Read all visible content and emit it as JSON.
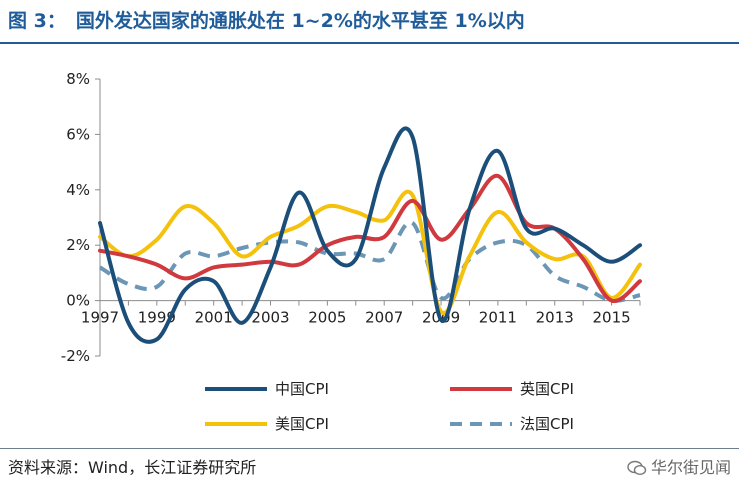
{
  "header": {
    "figure_label": "图 3：",
    "title": "国外发达国家的通胀处在 1~2%的水平甚至 1%以内"
  },
  "footer": {
    "source": "资料来源：Wind，长江证券研究所",
    "watermark": "华尔街见闻"
  },
  "colors": {
    "title": "#1f5c99",
    "china": "#1b4f7a",
    "uk": "#d0393e",
    "us": "#f4c20d",
    "france": "#6b96b6"
  },
  "chart_data": {
    "type": "line",
    "title": "",
    "xlabel": "",
    "ylabel": "",
    "ylim": [
      -2,
      8
    ],
    "xlim": [
      1997,
      2016
    ],
    "y_ticks": [
      "-2%",
      "0%",
      "2%",
      "4%",
      "6%",
      "8%"
    ],
    "y_tick_values": [
      -2,
      0,
      2,
      4,
      6,
      8
    ],
    "x_ticks": [
      "1997",
      "1999",
      "2001",
      "2003",
      "2005",
      "2007",
      "2009",
      "2011",
      "2013",
      "2015"
    ],
    "x_tick_values": [
      1997,
      1999,
      2001,
      2003,
      2005,
      2007,
      2009,
      2011,
      2013,
      2015
    ],
    "grid": false,
    "legend_position": "bottom",
    "x": [
      1997,
      1998,
      1999,
      2000,
      2001,
      2002,
      2003,
      2004,
      2005,
      2006,
      2007,
      2008,
      2009,
      2010,
      2011,
      2012,
      2013,
      2014,
      2015,
      2016
    ],
    "series": [
      {
        "name": "中国CPI",
        "color": "#1b4f7a",
        "dash": "solid",
        "values": [
          2.8,
          -0.8,
          -1.4,
          0.4,
          0.7,
          -0.8,
          1.2,
          3.9,
          1.8,
          1.5,
          4.8,
          5.9,
          -0.7,
          3.3,
          5.4,
          2.6,
          2.6,
          2.0,
          1.4,
          2.0
        ]
      },
      {
        "name": "英国CPI",
        "color": "#d0393e",
        "dash": "solid",
        "values": [
          1.8,
          1.6,
          1.3,
          0.8,
          1.2,
          1.3,
          1.4,
          1.3,
          2.0,
          2.3,
          2.3,
          3.6,
          2.2,
          3.3,
          4.5,
          2.8,
          2.6,
          1.5,
          0.0,
          0.7
        ]
      },
      {
        "name": "美国CPI",
        "color": "#f4c20d",
        "dash": "solid",
        "values": [
          2.3,
          1.6,
          2.2,
          3.4,
          2.8,
          1.6,
          2.3,
          2.7,
          3.4,
          3.2,
          2.9,
          3.8,
          -0.4,
          1.6,
          3.2,
          2.1,
          1.5,
          1.6,
          0.1,
          1.3
        ]
      },
      {
        "name": "法国CPI",
        "color": "#6b96b6",
        "dash": "dashed",
        "values": [
          1.2,
          0.6,
          0.5,
          1.7,
          1.6,
          1.9,
          2.1,
          2.1,
          1.7,
          1.7,
          1.5,
          2.8,
          0.1,
          1.5,
          2.1,
          2.0,
          0.9,
          0.5,
          0.0,
          0.2
        ]
      }
    ]
  }
}
